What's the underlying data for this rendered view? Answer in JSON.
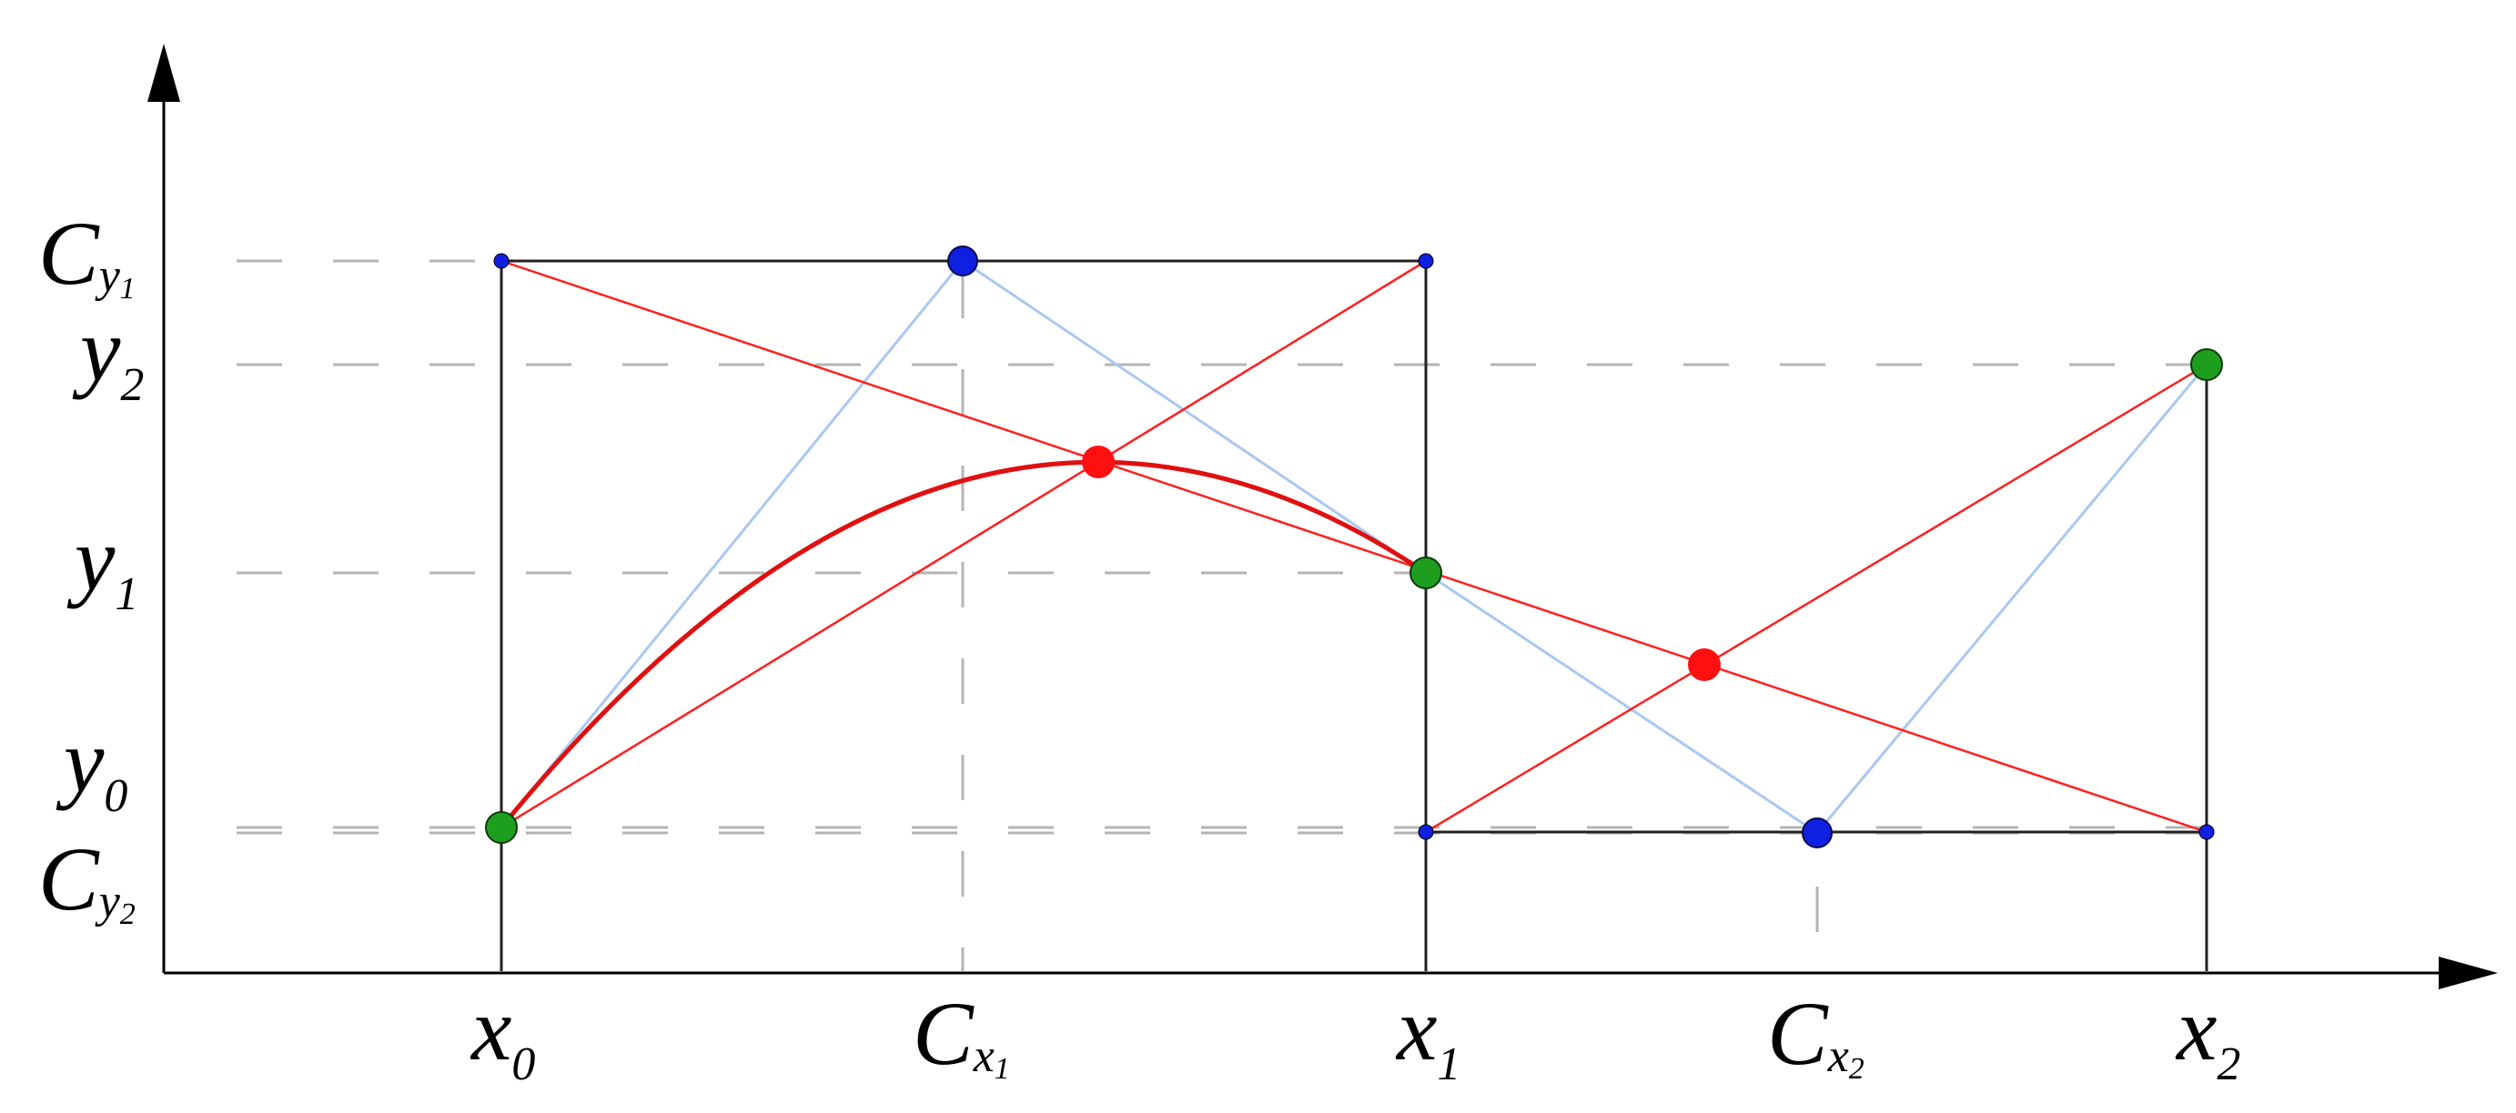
{
  "diagram": {
    "kind": "quadratic bezier spline construction",
    "colors": {
      "axis": "#000000",
      "box": "#222222",
      "guide": "#b4b4b4",
      "control_leg": "#a9c8f0",
      "diagonal": "#ff2020",
      "curve": "#e01010",
      "endpoint": "#1e9e1e",
      "control_point": "#1020e0",
      "corner": "#1020e0",
      "midpoint": "#ff1010"
    },
    "x_labels": {
      "x0": {
        "base": "x",
        "sub": "0"
      },
      "cx1": {
        "base": "C",
        "sub": "x",
        "subsub": "1"
      },
      "x1": {
        "base": "x",
        "sub": "1"
      },
      "cx2": {
        "base": "C",
        "sub": "x",
        "subsub": "2"
      },
      "x2": {
        "base": "x",
        "sub": "2"
      }
    },
    "y_labels": {
      "cy1": {
        "base": "C",
        "sub": "y",
        "subsub": "1"
      },
      "y2": {
        "base": "y",
        "sub": "2"
      },
      "y1": {
        "base": "y",
        "sub": "1"
      },
      "y0": {
        "base": "y",
        "sub": "0"
      },
      "cy2": {
        "base": "C",
        "sub": "y",
        "subsub": "2"
      }
    }
  }
}
